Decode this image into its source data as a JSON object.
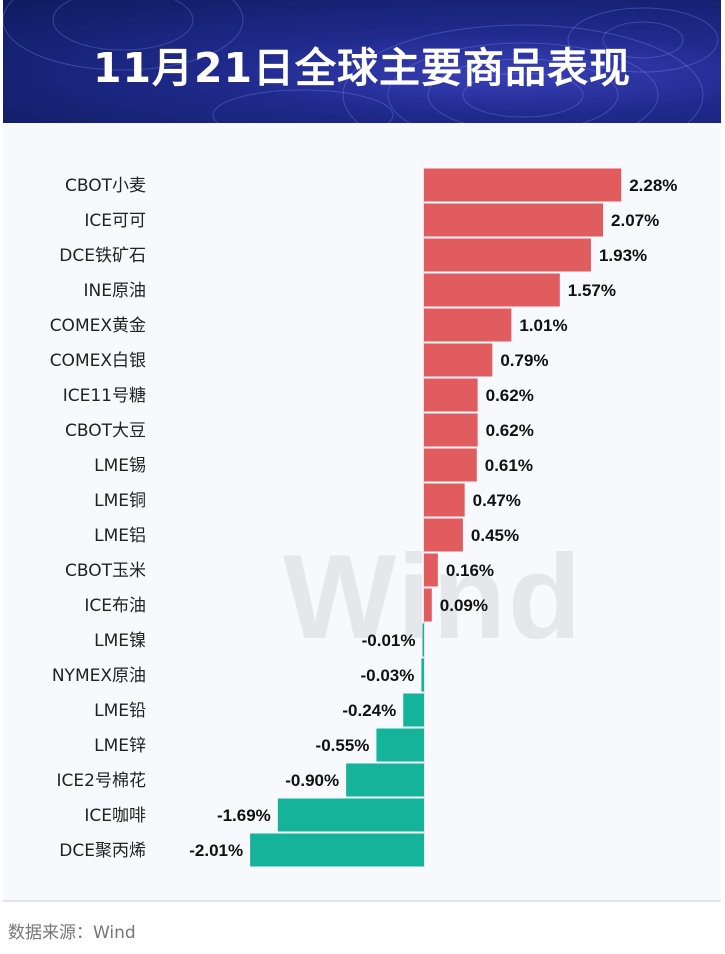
{
  "header": {
    "title": "11月21日全球主要商品表现"
  },
  "watermark": "Wind",
  "source": "数据来源：Wind",
  "colors": {
    "positive": "#e05c5f",
    "negative": "#14b39a"
  },
  "chart_data": {
    "type": "bar",
    "orientation": "horizontal",
    "title": "11月21日全球主要商品表现",
    "unit": "%",
    "categories": [
      "CBOT小麦",
      "ICE可可",
      "DCE铁矿石",
      "INE原油",
      "COMEX黄金",
      "COMEX白银",
      "ICE11号糖",
      "CBOT大豆",
      "LME锡",
      "LME铜",
      "LME铝",
      "CBOT玉米",
      "ICE布油",
      "LME镍",
      "NYMEX原油",
      "LME铅",
      "LME锌",
      "ICE2号棉花",
      "ICE咖啡",
      "DCE聚丙烯"
    ],
    "values": [
      2.28,
      2.07,
      1.93,
      1.57,
      1.01,
      0.79,
      0.62,
      0.62,
      0.61,
      0.47,
      0.45,
      0.16,
      0.09,
      -0.01,
      -0.03,
      -0.24,
      -0.55,
      -0.9,
      -1.69,
      -2.01
    ],
    "labels": [
      "2.28%",
      "2.07%",
      "1.93%",
      "1.57%",
      "1.01%",
      "0.79%",
      "0.62%",
      "0.62%",
      "0.61%",
      "0.47%",
      "0.45%",
      "0.16%",
      "0.09%",
      "-0.01%",
      "-0.03%",
      "-0.24%",
      "-0.55%",
      "-0.90%",
      "-1.69%",
      "-2.01%"
    ],
    "xlim": [
      -2.01,
      2.28
    ]
  }
}
